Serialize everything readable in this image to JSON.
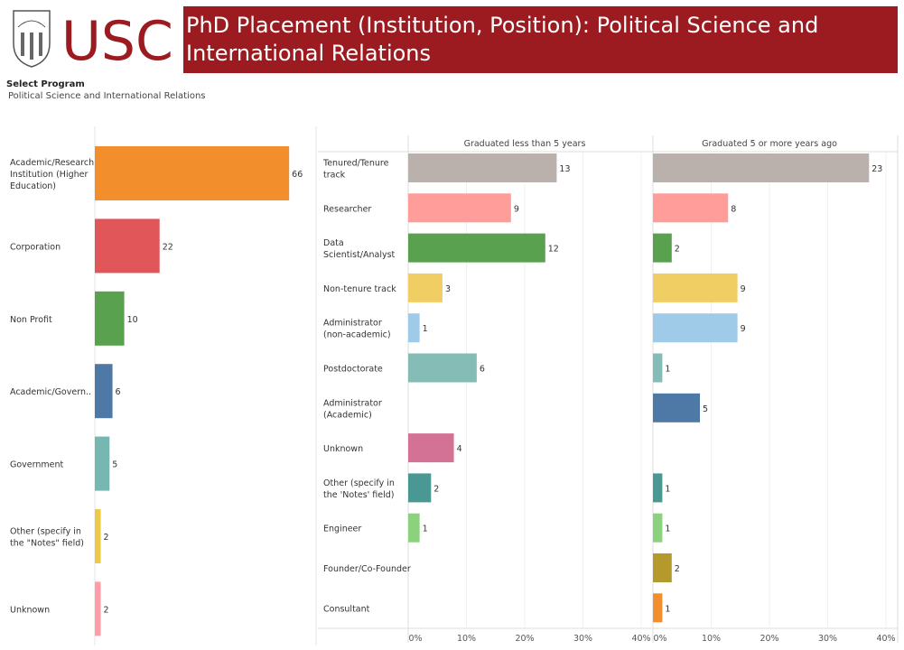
{
  "logo": {
    "text": "USC"
  },
  "header": {
    "title": "PhD Placement (Institution, Position):  Political Science and International Relations"
  },
  "filter": {
    "label": "Select Program",
    "value": "Political Science and International Relations"
  },
  "chart_data": [
    {
      "type": "bar",
      "orientation": "horizontal",
      "categories": [
        "Academic/Research Institution (Higher Education)",
        "Corporation",
        "Non Profit",
        "Academic/Govern..",
        "Government",
        "Other (specify in the \"Notes\" field)",
        "Unknown"
      ],
      "values": [
        66,
        22,
        10,
        6,
        5,
        2,
        2
      ],
      "colors": [
        "#f28e2b",
        "#e15759",
        "#59a14f",
        "#4e79a7",
        "#76b7b2",
        "#edc948",
        "#ff9da7"
      ]
    },
    {
      "type": "bar",
      "orientation": "horizontal",
      "xlim": [
        0,
        40
      ],
      "xticks": [
        "0%",
        "10%",
        "20%",
        "30%",
        "40%"
      ],
      "grid": true,
      "categories": [
        "Tenured/Tenure track",
        "Researcher",
        "Data Scientist/Analyst",
        "Non-tenure track",
        "Administrator (non-academic)",
        "Postdoctorate",
        "Administrator (Academic)",
        "Unknown",
        "Other (specify in the 'Notes' field)",
        "Engineer",
        "Founder/Co-Founder",
        "Consultant"
      ],
      "colors": [
        "#bab0ac",
        "#ff9d9a",
        "#59a14f",
        "#f1ce63",
        "#a0cbe8",
        "#86bcb6",
        "#4e79a7",
        "#d37295",
        "#499894",
        "#8cd17d",
        "#b6992d",
        "#f28e2b"
      ],
      "series": [
        {
          "name": "Graduated less than 5 years",
          "values": [
            13,
            9,
            12,
            3,
            1,
            6,
            null,
            4,
            2,
            1,
            null,
            null
          ]
        },
        {
          "name": "Graduated 5 or more years ago",
          "values": [
            23,
            8,
            2,
            9,
            9,
            1,
            5,
            null,
            1,
            1,
            2,
            1
          ]
        }
      ]
    }
  ]
}
